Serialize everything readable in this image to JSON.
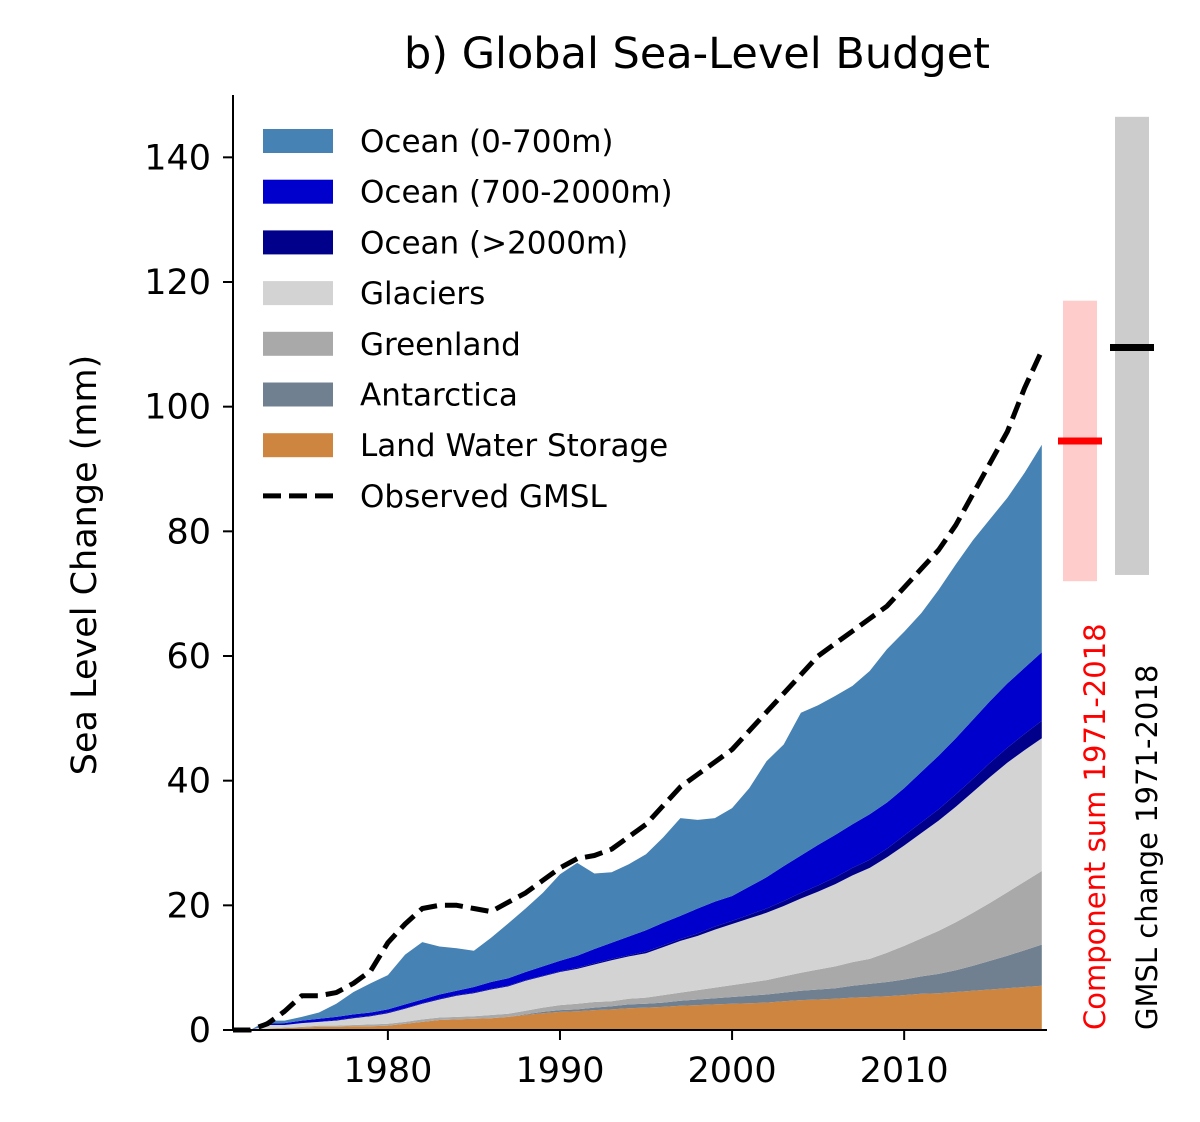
{
  "chart_data": {
    "type": "area",
    "title": "b) Global Sea-Level Budget",
    "xlabel": "",
    "ylabel": "Sea Level Change (mm)",
    "xlim": [
      1971,
      2018.3
    ],
    "ylim": [
      0,
      150
    ],
    "xticks": [
      1980,
      1990,
      2000,
      2010
    ],
    "yticks": [
      0,
      20,
      40,
      60,
      80,
      100,
      120,
      140
    ],
    "legend_position": "top-left",
    "x": [
      1971,
      1972,
      1973,
      1974,
      1975,
      1976,
      1977,
      1978,
      1979,
      1980,
      1981,
      1982,
      1983,
      1984,
      1985,
      1986,
      1987,
      1988,
      1989,
      1990,
      1991,
      1992,
      1993,
      1994,
      1995,
      1996,
      1997,
      1998,
      1999,
      2000,
      2001,
      2002,
      2003,
      2004,
      2005,
      2006,
      2007,
      2008,
      2009,
      2010,
      2011,
      2012,
      2013,
      2014,
      2015,
      2016,
      2017,
      2018
    ],
    "series": [
      {
        "name": "Land Water Storage",
        "color": "#cd853f",
        "kind": "area",
        "values": [
          0,
          0,
          0.2,
          0.3,
          0.4,
          0.5,
          0.5,
          0.6,
          0.6,
          0.7,
          1.0,
          1.3,
          1.6,
          1.7,
          1.8,
          1.9,
          2.1,
          2.4,
          2.7,
          2.9,
          3.0,
          3.2,
          3.3,
          3.5,
          3.6,
          3.7,
          3.9,
          4.0,
          4.1,
          4.2,
          4.3,
          4.4,
          4.6,
          4.8,
          4.9,
          5.0,
          5.2,
          5.3,
          5.4,
          5.6,
          5.8,
          5.9,
          6.1,
          6.3,
          6.5,
          6.7,
          6.9,
          7.1
        ]
      },
      {
        "name": "Antarctica",
        "color": "#708090",
        "kind": "area",
        "values": [
          0,
          0,
          0,
          0,
          0,
          0,
          0,
          0,
          0,
          0,
          0,
          0,
          0,
          0,
          0,
          0,
          0,
          0.1,
          0.2,
          0.3,
          0.3,
          0.4,
          0.5,
          0.6,
          0.6,
          0.7,
          0.8,
          0.9,
          1.0,
          1.1,
          1.2,
          1.3,
          1.4,
          1.5,
          1.6,
          1.7,
          1.9,
          2.1,
          2.3,
          2.5,
          2.8,
          3.1,
          3.5,
          4.0,
          4.6,
          5.2,
          5.9,
          6.6
        ]
      },
      {
        "name": "Greenland",
        "color": "#a9a9a9",
        "kind": "area",
        "values": [
          0,
          0,
          0,
          0.1,
          0.1,
          0.2,
          0.2,
          0.2,
          0.3,
          0.3,
          0.3,
          0.4,
          0.4,
          0.4,
          0.4,
          0.5,
          0.5,
          0.6,
          0.7,
          0.8,
          0.9,
          0.9,
          0.8,
          0.9,
          1.0,
          1.2,
          1.3,
          1.5,
          1.7,
          1.9,
          2.1,
          2.3,
          2.6,
          2.9,
          3.2,
          3.5,
          3.8,
          4.0,
          4.7,
          5.4,
          6.1,
          6.9,
          7.7,
          8.5,
          9.3,
          10.2,
          11.0,
          11.8
        ]
      },
      {
        "name": "Glaciers",
        "color": "#d3d3d3",
        "kind": "area",
        "values": [
          0,
          0,
          0.6,
          0.4,
          0.6,
          0.6,
          0.8,
          1.1,
          1.3,
          1.7,
          2.1,
          2.5,
          2.9,
          3.4,
          3.7,
          4.1,
          4.4,
          4.8,
          5.0,
          5.3,
          5.6,
          6.0,
          6.6,
          6.8,
          7.1,
          7.7,
          8.3,
          8.7,
          9.3,
          9.8,
          10.3,
          10.8,
          11.3,
          11.9,
          12.5,
          13.2,
          13.9,
          14.6,
          15.3,
          16.1,
          16.9,
          17.7,
          18.5,
          19.4,
          20.2,
          20.8,
          21.1,
          21.3
        ]
      },
      {
        "name": "Ocean (>2000m)",
        "color": "#00008b",
        "kind": "area",
        "values": [
          0,
          0,
          0,
          0,
          0,
          0,
          0.1,
          0.1,
          0.1,
          0.1,
          0.1,
          0.1,
          0.1,
          0.1,
          0.1,
          0.1,
          0.1,
          0.1,
          0.1,
          0.1,
          0.2,
          0.2,
          0.2,
          0.2,
          0.3,
          0.3,
          0.3,
          0.4,
          0.5,
          0.5,
          0.6,
          0.7,
          0.8,
          0.9,
          1.0,
          1.1,
          1.2,
          1.3,
          1.4,
          1.6,
          1.7,
          1.8,
          2.0,
          2.1,
          2.3,
          2.4,
          2.6,
          2.8
        ]
      },
      {
        "name": "Ocean (700-2000m)",
        "color": "#0000cd",
        "kind": "area",
        "values": [
          0,
          0,
          0.2,
          0.3,
          0.4,
          0.5,
          0.5,
          0.5,
          0.5,
          0.5,
          0.6,
          0.6,
          0.7,
          0.7,
          0.9,
          1.1,
          1.2,
          1.3,
          1.5,
          1.7,
          1.9,
          2.3,
          2.6,
          3.0,
          3.4,
          3.6,
          3.7,
          4.0,
          4.0,
          4.0,
          4.5,
          5.0,
          5.6,
          6.0,
          6.5,
          6.8,
          7.0,
          7.3,
          7.4,
          7.6,
          8.1,
          8.6,
          9.0,
          9.5,
          9.9,
          10.3,
          10.6,
          11.0
        ]
      },
      {
        "name": "Ocean (0-700m)",
        "color": "#4682b4",
        "kind": "area",
        "values": [
          0,
          0,
          0.5,
          0.4,
          0.6,
          1.0,
          2.1,
          3.6,
          4.7,
          5.5,
          8.0,
          9.2,
          7.7,
          6.8,
          5.8,
          7.1,
          8.8,
          10.2,
          11.8,
          13.9,
          14.9,
          12.1,
          11.3,
          11.6,
          12.2,
          13.7,
          15.7,
          14.2,
          13.4,
          14.1,
          15.8,
          18.6,
          19.5,
          22.9,
          22.4,
          22.3,
          22.2,
          23.0,
          24.6,
          25.1,
          25.5,
          26.6,
          27.9,
          28.8,
          29.2,
          29.8,
          31.3,
          33.3
        ]
      },
      {
        "name": "Observed GMSL",
        "color": "#000000",
        "kind": "line",
        "dash": true,
        "values": [
          0,
          0,
          1,
          3,
          5.5,
          5.5,
          6,
          7.5,
          9.5,
          14,
          17,
          19.5,
          20,
          20,
          19.5,
          19,
          20.5,
          22,
          24,
          26,
          27.5,
          28,
          29,
          31,
          33,
          36,
          39,
          41,
          43,
          45,
          48,
          51,
          54,
          57,
          60,
          62,
          64,
          66,
          68,
          71,
          74,
          77,
          81,
          86,
          91,
          96,
          103,
          109
        ]
      }
    ],
    "error_bars": [
      {
        "label": "Component sum 1971-2018",
        "center": 94.5,
        "low": 72,
        "high": 117,
        "band_color": "#ffcccc",
        "line_color": "#ff0000",
        "label_color": "#ff0000"
      },
      {
        "label": "GMSL change 1971-2018",
        "center": 109.5,
        "low": 73,
        "high": 146.5,
        "band_color": "#cccccc",
        "line_color": "#000000",
        "label_color": "#000000"
      }
    ]
  }
}
